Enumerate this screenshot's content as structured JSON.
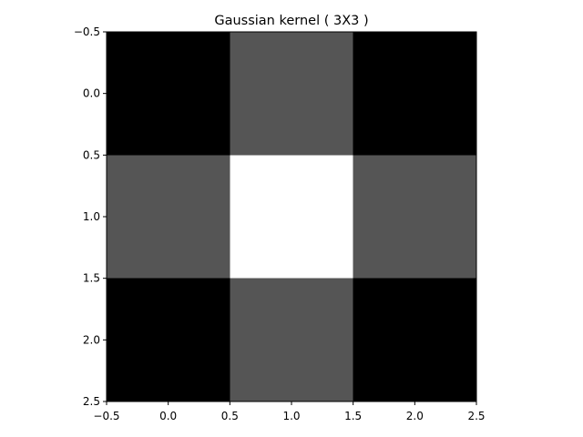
{
  "chart_data": {
    "type": "heatmap",
    "title": "Gaussian kernel ( 3X3 )",
    "xlabel": "",
    "ylabel": "",
    "colormap": "gray",
    "matrix": [
      [
        0.0625,
        0.125,
        0.0625
      ],
      [
        0.125,
        0.25,
        0.125
      ],
      [
        0.0625,
        0.125,
        0.0625
      ]
    ],
    "xlim": [
      -0.5,
      2.5
    ],
    "ylim": [
      2.5,
      -0.5
    ],
    "xticks": [
      -0.5,
      0.0,
      0.5,
      1.0,
      1.5,
      2.0,
      2.5
    ],
    "yticks": [
      -0.5,
      0.0,
      0.5,
      1.0,
      1.5,
      2.0,
      2.5
    ],
    "xtick_labels": [
      "−0.5",
      "0.0",
      "0.5",
      "1.0",
      "1.5",
      "2.0",
      "2.5"
    ],
    "ytick_labels": [
      "−0.5",
      "0.0",
      "0.5",
      "1.0",
      "1.5",
      "2.0",
      "2.5"
    ],
    "grid": false
  }
}
